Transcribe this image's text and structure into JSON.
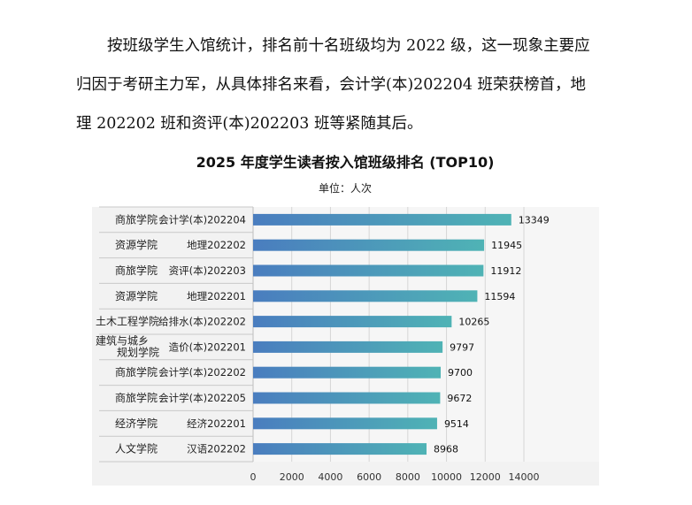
{
  "paragraph": {
    "line1": "按班级学生入馆统计，排名前十名班级均为 2022 级，这一现象主要应",
    "line2": "归因于考研主力军，从具体排名来看，会计学(本)202204 班荣获榜首，地",
    "line3": "理 202202 班和资评(本)202203 班等紧随其后。"
  },
  "chart_data": {
    "type": "bar",
    "orientation": "horizontal",
    "title": "2025 年度学生读者按入馆班级排名 (TOP10)",
    "subtitle": "单位：人次",
    "categories": [
      {
        "college": "商旅学院",
        "class": "会计学(本)202204"
      },
      {
        "college": "资源学院",
        "class": "地理202202"
      },
      {
        "college": "商旅学院",
        "class": "资评(本)202203"
      },
      {
        "college": "资源学院",
        "class": "地理202201"
      },
      {
        "college": "土木工程学院",
        "class": "给排水(本)202202"
      },
      {
        "college": "建筑与城乡规划学院",
        "class": "造价(本)202201"
      },
      {
        "college": "商旅学院",
        "class": "会计学(本)202202"
      },
      {
        "college": "商旅学院",
        "class": "会计学(本)202205"
      },
      {
        "college": "经济学院",
        "class": "经济202201"
      },
      {
        "college": "人文学院",
        "class": "汉语202202"
      }
    ],
    "values": [
      13349,
      11945,
      11912,
      11594,
      10265,
      9797,
      9700,
      9672,
      9514,
      8968
    ],
    "xlim": [
      0,
      16000
    ],
    "xticks": [
      0,
      2000,
      4000,
      6000,
      8000,
      10000,
      12000,
      14000
    ],
    "grid": true,
    "colors": {
      "bar_start": "#4a7dbf",
      "bar_end": "#4fb3b5",
      "plot_bg": "#f2f2f2",
      "grid": "#d6d6d6"
    }
  }
}
